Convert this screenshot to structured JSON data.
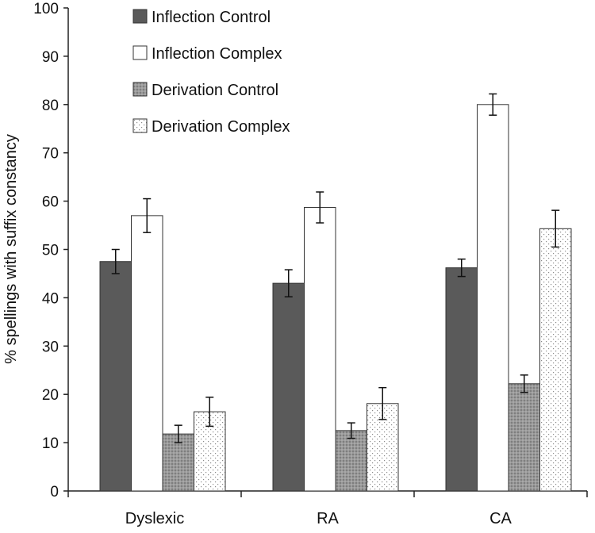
{
  "chart_data": {
    "type": "bar",
    "title": "",
    "xlabel": "",
    "ylabel": "% spellings with suffix constancy",
    "ylim": [
      0,
      100
    ],
    "yticks": [
      0,
      10,
      20,
      30,
      40,
      50,
      60,
      70,
      80,
      90,
      100
    ],
    "grid": false,
    "legend_position": "top-left",
    "categories": [
      "Dyslexic",
      "RA",
      "CA"
    ],
    "series": [
      {
        "name": "Inflection Control",
        "pattern": "dark",
        "values": [
          47.5,
          43,
          46.2
        ],
        "errors": [
          2.5,
          2.8,
          1.8
        ]
      },
      {
        "name": "Inflection Complex",
        "pattern": "white",
        "values": [
          57,
          58.7,
          80
        ],
        "errors": [
          3.5,
          3.2,
          2.2
        ]
      },
      {
        "name": "Derivation Control",
        "pattern": "grey-dots",
        "values": [
          11.8,
          12.5,
          22.2
        ],
        "errors": [
          1.8,
          1.6,
          1.8
        ]
      },
      {
        "name": "Derivation Complex",
        "pattern": "light-dots",
        "values": [
          16.4,
          18.1,
          54.3
        ],
        "errors": [
          3,
          3.3,
          3.8
        ]
      }
    ],
    "colors": {
      "dark": "#5a5a5a",
      "grey": "#8e8e8e",
      "outline": "#333333"
    }
  }
}
